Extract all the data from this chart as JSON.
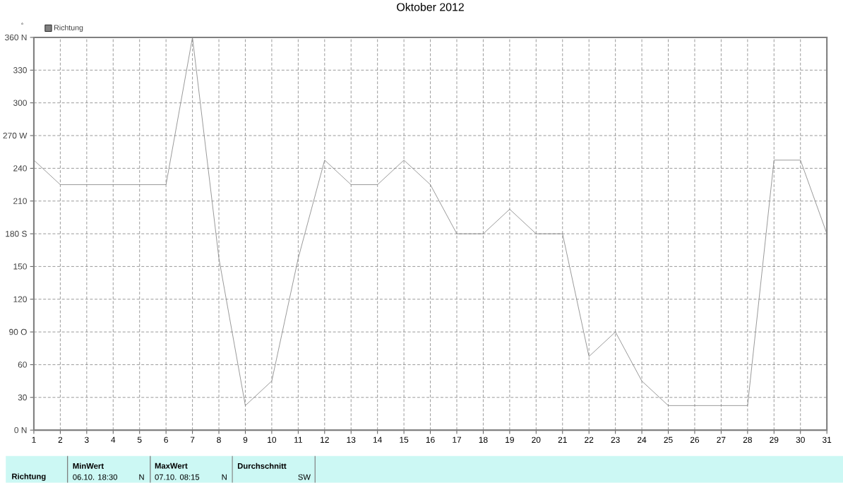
{
  "chart_data": {
    "type": "line",
    "title": "Oktober 2012",
    "ylabel": "°",
    "x": [
      1,
      2,
      3,
      4,
      5,
      6,
      7,
      8,
      9,
      10,
      11,
      12,
      13,
      14,
      15,
      16,
      17,
      18,
      19,
      20,
      21,
      22,
      23,
      24,
      25,
      26,
      27,
      28,
      29,
      30,
      31
    ],
    "series": [
      {
        "name": "Richtung",
        "color": "#808080",
        "values": [
          247.5,
          225,
          225,
          225,
          225,
          225,
          360,
          157.5,
          22.5,
          45,
          157.5,
          247.5,
          225,
          225,
          247.5,
          225,
          180,
          180,
          202.5,
          180,
          180,
          67.5,
          90,
          45,
          22.5,
          22.5,
          22.5,
          22.5,
          247.5,
          247.5,
          180
        ]
      }
    ],
    "xlim": [
      1,
      31
    ],
    "xticks": [
      1,
      2,
      3,
      4,
      5,
      6,
      7,
      8,
      9,
      10,
      11,
      12,
      13,
      14,
      15,
      16,
      17,
      18,
      19,
      20,
      21,
      22,
      23,
      24,
      25,
      26,
      27,
      28,
      29,
      30,
      31
    ],
    "ylim": [
      0,
      360
    ],
    "yticks": [
      {
        "value": 0,
        "label": "0   N"
      },
      30,
      60,
      {
        "value": 90,
        "label": "90  O"
      },
      120,
      150,
      {
        "value": 180,
        "label": "180 S"
      },
      210,
      240,
      {
        "value": 270,
        "label": "270 W"
      },
      300,
      330,
      {
        "value": 360,
        "label": "360 N"
      }
    ],
    "grid": true,
    "legend": "top left",
    "marker": "none",
    "line_style": "solid",
    "annotations": [
      "Richtung",
      "MinWert",
      "06.10.  18:30",
      "N",
      "MaxWert",
      "07.10.  08:15",
      "N",
      "Durchschnitt",
      "SW"
    ]
  }
}
